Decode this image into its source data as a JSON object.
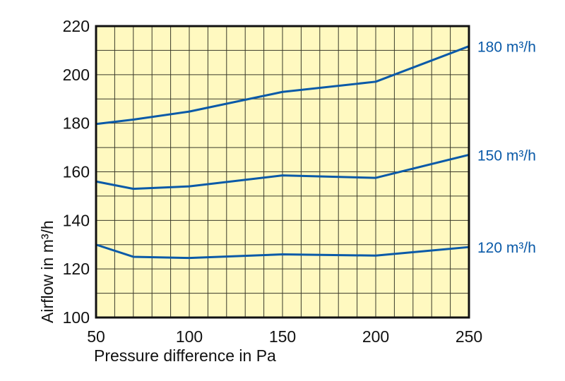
{
  "chart_data": {
    "type": "line",
    "title": "",
    "xlabel": "Pressure difference in Pa",
    "ylabel": "Airflow in m³/h",
    "xlim": [
      50,
      250
    ],
    "ylim": [
      100,
      220
    ],
    "xticks": [
      50,
      100,
      150,
      200,
      250
    ],
    "yticks": [
      100,
      120,
      140,
      160,
      180,
      200,
      220
    ],
    "x_minor_step": 10,
    "y_minor_step": 10,
    "grid": true,
    "legend": "right-end labels",
    "colors": {
      "line": "#0a5aa8",
      "plot_bg": "#fff9c0",
      "grid": "#3a3a2a",
      "axis": "#111111"
    },
    "x": [
      50,
      70,
      100,
      150,
      200,
      250
    ],
    "series": [
      {
        "name": "180 m³/h",
        "values": [
          179.7,
          181.5,
          184.8,
          192.9,
          197.1,
          211.7
        ]
      },
      {
        "name": "150 m³/h",
        "values": [
          156,
          153,
          154,
          158.5,
          157.5,
          167
        ]
      },
      {
        "name": "120 m³/h",
        "values": [
          130,
          125,
          124.5,
          126,
          125.5,
          129
        ]
      }
    ]
  }
}
